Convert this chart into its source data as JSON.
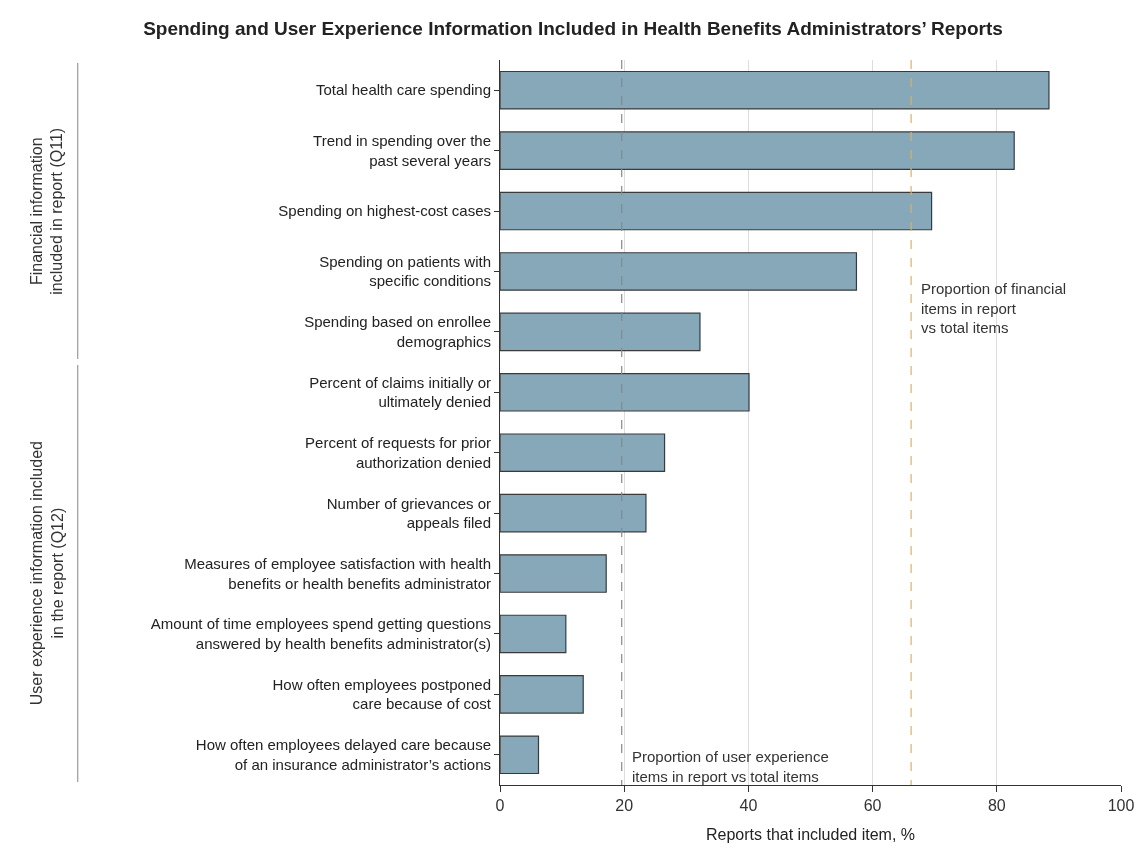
{
  "chart_data": {
    "type": "bar",
    "orientation": "horizontal",
    "title": "Spending and User Experience Information Included in Health Benefits Administrators’ Reports",
    "xlabel": "Reports that included item, %",
    "categories": [
      "Total health care spending",
      "Trend in spending over the\npast several years",
      "Spending on highest-cost cases",
      "Spending on patients with\nspecific conditions",
      "Spending based on enrollee\ndemographics",
      "Percent of claims initially or\nultimately denied",
      "Percent of requests for prior\nauthorization denied",
      "Number of grievances or\nappeals filed",
      "Measures of employee satisfaction with health\nbenefits or health benefits administrator",
      "Amount of time employees spend getting questions\nanswered by health benefits administrator(s)",
      "How often employees postponed\ncare because of cost",
      "How often employees delayed care because\nof an insurance administrator’s actions"
    ],
    "values": [
      88.4,
      82.8,
      69.5,
      57.4,
      32.2,
      40.1,
      26.5,
      23.5,
      17.1,
      10.6,
      13.4,
      6.2
    ],
    "color": "#87a8b8",
    "xlim": [
      0,
      100
    ],
    "xticks": [
      0,
      20,
      40,
      60,
      80,
      100
    ],
    "grid": "x",
    "ref_lines": [
      {
        "axis": "x",
        "value": 66.2,
        "label": "Proportion of financial\nitems in report\nvs total items",
        "color": "#e0b060",
        "line_style": "dashed"
      },
      {
        "axis": "x",
        "value": 19.6,
        "label": "Proportion of user experience\nitems in report vs total items",
        "color": "#888888",
        "line_style": "dashed"
      }
    ],
    "annotations": [
      "Financial information\nincluded in report (Q11)",
      "User experience information included\nin the report (Q12)"
    ]
  }
}
